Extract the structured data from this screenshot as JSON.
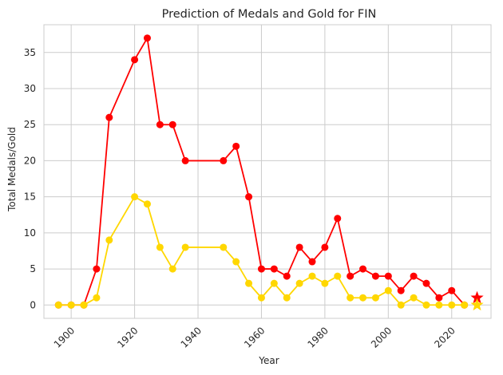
{
  "chart_data": {
    "type": "line",
    "title": "Prediction of Medals and Gold for FIN",
    "xlabel": "Year",
    "ylabel": "Total Medals/Gold",
    "xlim": [
      1891.4,
      2032.4
    ],
    "ylim": [
      -1.85,
      38.85
    ],
    "x_ticks": [
      1900,
      1920,
      1940,
      1960,
      1980,
      2000,
      2020
    ],
    "y_ticks": [
      0,
      5,
      10,
      15,
      20,
      25,
      30,
      35
    ],
    "grid": true,
    "legend": "none",
    "x": [
      1896,
      1900,
      1904,
      1908,
      1912,
      1920,
      1924,
      1928,
      1932,
      1936,
      1948,
      1952,
      1956,
      1960,
      1964,
      1968,
      1972,
      1976,
      1980,
      1984,
      1988,
      1992,
      1996,
      2000,
      2004,
      2008,
      2012,
      2016,
      2020,
      2024
    ],
    "series": [
      {
        "color": "#ff0000",
        "values": [
          0,
          0,
          0,
          5,
          26,
          34,
          37,
          25,
          25,
          20,
          20,
          22,
          15,
          5,
          5,
          4,
          8,
          6,
          8,
          12,
          4,
          5,
          4,
          4,
          2,
          4,
          3,
          1,
          2,
          0
        ],
        "prediction": {
          "x": 2028,
          "y": 1
        }
      },
      {
        "color": "#ffd700",
        "values": [
          0,
          0,
          0,
          1,
          9,
          15,
          14,
          8,
          5,
          8,
          8,
          6,
          3,
          1,
          3,
          1,
          3,
          4,
          3,
          4,
          1,
          1,
          1,
          2,
          0,
          1,
          0,
          0,
          0,
          0
        ],
        "prediction": {
          "x": 2028,
          "y": 0
        }
      }
    ]
  }
}
